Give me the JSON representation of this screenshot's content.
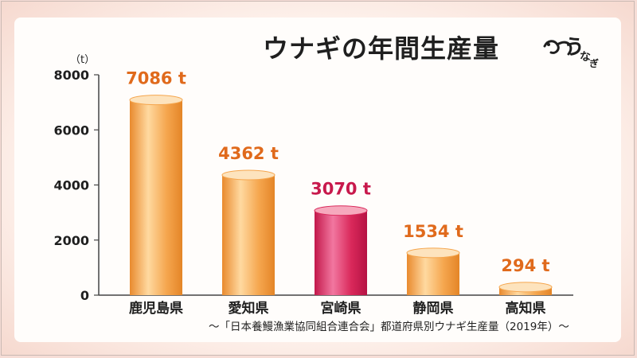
{
  "chart_data": {
    "type": "bar",
    "title": "ウナギの年間生産量",
    "unit_label": "（t）",
    "categories": [
      "鹿児島県",
      "愛知県",
      "宮崎県",
      "静岡県",
      "高知県"
    ],
    "values": [
      7086,
      4362,
      3070,
      1534,
      294
    ],
    "value_labels": [
      "7086 t",
      "4362 t",
      "3070 t",
      "1534 t",
      "294 t"
    ],
    "y_ticks": [
      "8000",
      "6000",
      "4000",
      "2000",
      "0"
    ],
    "ylim": [
      0,
      8000
    ],
    "highlight_index": 2,
    "colors": {
      "bar": "#f5a64e",
      "bar_light": "#fde3bd",
      "bar_highlight": "#d9285a",
      "bar_highlight_light": "#f6a9bd",
      "value_label": "#e06a1c",
      "value_label_highlight": "#c8194c",
      "text": "#1f1f1f",
      "axis": "#444444"
    },
    "source": "〜「日本養鰻漁業協同組合連合会」都道府県別ウナギ生産量（2019年）〜"
  },
  "logo": {
    "text": "うなぎ",
    "icon": "eel-icon"
  }
}
